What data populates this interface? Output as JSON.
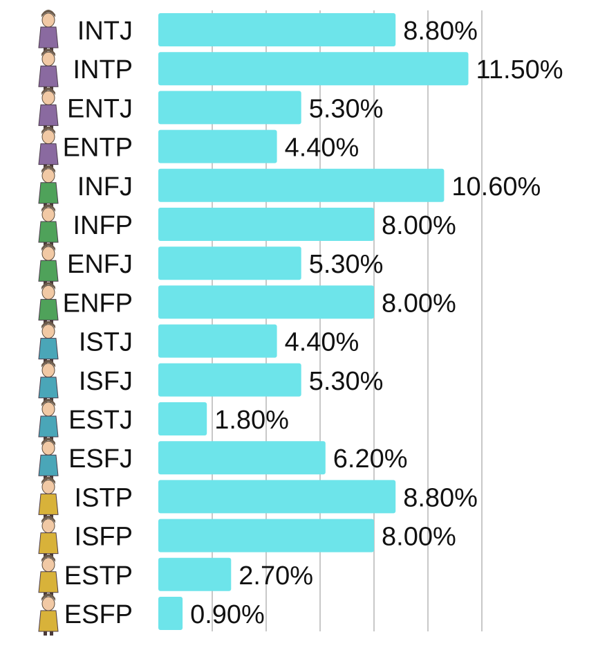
{
  "chart_data": {
    "type": "bar",
    "orientation": "horizontal",
    "categories": [
      "INTJ",
      "INTP",
      "ENTJ",
      "ENTP",
      "INFJ",
      "INFP",
      "ENFJ",
      "ENFP",
      "ISTJ",
      "ISFJ",
      "ESTJ",
      "ESFJ",
      "ISTP",
      "ISFP",
      "ESTP",
      "ESFP"
    ],
    "values": [
      8.8,
      11.5,
      5.3,
      4.4,
      10.6,
      8.0,
      5.3,
      8.0,
      4.4,
      5.3,
      1.8,
      6.2,
      8.8,
      8.0,
      2.7,
      0.9
    ],
    "value_labels": [
      "8.80%",
      "11.50%",
      "5.30%",
      "4.40%",
      "10.60%",
      "8.00%",
      "5.30%",
      "8.00%",
      "4.40%",
      "5.30%",
      "1.80%",
      "6.20%",
      "8.80%",
      "8.00%",
      "2.70%",
      "0.90%"
    ],
    "xlim": [
      0,
      12
    ],
    "grid": true,
    "legend": "none",
    "bar_color": "#6de4ea",
    "grid_color": "#c8c8c8",
    "category_avatars": [
      {
        "icon": "intj-character-icon",
        "color": "#8a6aa0"
      },
      {
        "icon": "intp-character-icon",
        "color": "#8a6aa0"
      },
      {
        "icon": "entj-character-icon",
        "color": "#8a6aa0"
      },
      {
        "icon": "entp-character-icon",
        "color": "#8a6aa0"
      },
      {
        "icon": "infj-character-icon",
        "color": "#4fa25a"
      },
      {
        "icon": "infp-character-icon",
        "color": "#4fa25a"
      },
      {
        "icon": "enfj-character-icon",
        "color": "#4fa25a"
      },
      {
        "icon": "enfp-character-icon",
        "color": "#4fa25a"
      },
      {
        "icon": "istj-character-icon",
        "color": "#4aa6b8"
      },
      {
        "icon": "isfj-character-icon",
        "color": "#4aa6b8"
      },
      {
        "icon": "estj-character-icon",
        "color": "#4aa6b8"
      },
      {
        "icon": "esfj-character-icon",
        "color": "#4aa6b8"
      },
      {
        "icon": "istp-character-icon",
        "color": "#d8b23a"
      },
      {
        "icon": "isfp-character-icon",
        "color": "#d8b23a"
      },
      {
        "icon": "estp-character-icon",
        "color": "#d8b23a"
      },
      {
        "icon": "esfp-character-icon",
        "color": "#d8b23a"
      }
    ]
  }
}
